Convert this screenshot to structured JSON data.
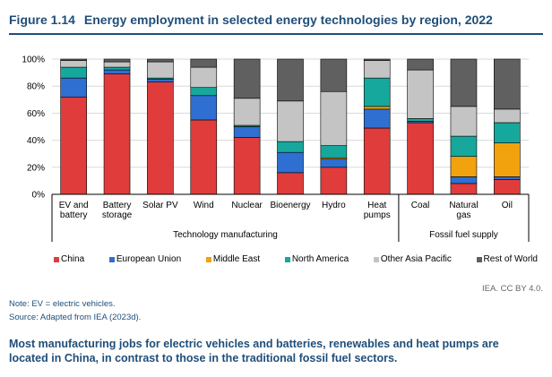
{
  "figure": {
    "number": "Figure 1.14",
    "title": "Energy employment in selected energy technologies by region, 2022"
  },
  "chart_data": {
    "type": "bar",
    "stacked": true,
    "categories": [
      [
        "EV and",
        "battery"
      ],
      [
        "Battery",
        "storage"
      ],
      [
        "Solar PV"
      ],
      [
        "Wind"
      ],
      [
        "Nuclear"
      ],
      [
        "Bioenergy"
      ],
      [
        "Hydro"
      ],
      [
        "Heat",
        "pumps"
      ],
      [
        "Coal"
      ],
      [
        "Natural",
        "gas"
      ],
      [
        "Oil"
      ]
    ],
    "groups": [
      {
        "label": "Technology manufacturing",
        "start": 0,
        "end": 7
      },
      {
        "label": "Fossil fuel supply",
        "start": 8,
        "end": 10
      }
    ],
    "series": [
      {
        "name": "China",
        "color": "#e03c3c",
        "values": [
          72,
          89,
          83,
          55,
          42,
          16,
          20,
          49,
          53,
          8,
          11
        ]
      },
      {
        "name": "European Union",
        "color": "#2f6fd1",
        "values": [
          14,
          3,
          2,
          18,
          8,
          15,
          6,
          14,
          1,
          5,
          2
        ]
      },
      {
        "name": "Middle East",
        "color": "#f2a20c",
        "values": [
          0,
          0,
          0,
          0,
          0,
          0,
          1,
          2,
          0,
          15,
          25
        ]
      },
      {
        "name": "North America",
        "color": "#16a89c",
        "values": [
          8,
          2,
          1,
          6,
          1,
          8,
          9,
          21,
          2,
          15,
          15
        ]
      },
      {
        "name": "Other Asia Pacific",
        "color": "#c4c4c4",
        "values": [
          5,
          4,
          12,
          15,
          20,
          30,
          40,
          13,
          36,
          22,
          10
        ]
      },
      {
        "name": "Rest of World",
        "color": "#606060",
        "values": [
          1,
          2,
          2,
          6,
          29,
          31,
          24,
          1,
          8,
          35,
          37
        ]
      }
    ],
    "y_ticks": [
      "0%",
      "20%",
      "40%",
      "60%",
      "80%",
      "100%"
    ],
    "ylim": [
      0,
      100
    ],
    "legend_position": "bottom"
  },
  "credit": "IEA. CC BY 4.0.",
  "note": "Note: EV = electric vehicles.",
  "source": "Source: Adapted from IEA (2023d).",
  "caption": "Most manufacturing jobs for electric vehicles and batteries, renewables and heat pumps are located in China, in contrast to those in the traditional fossil fuel sectors."
}
